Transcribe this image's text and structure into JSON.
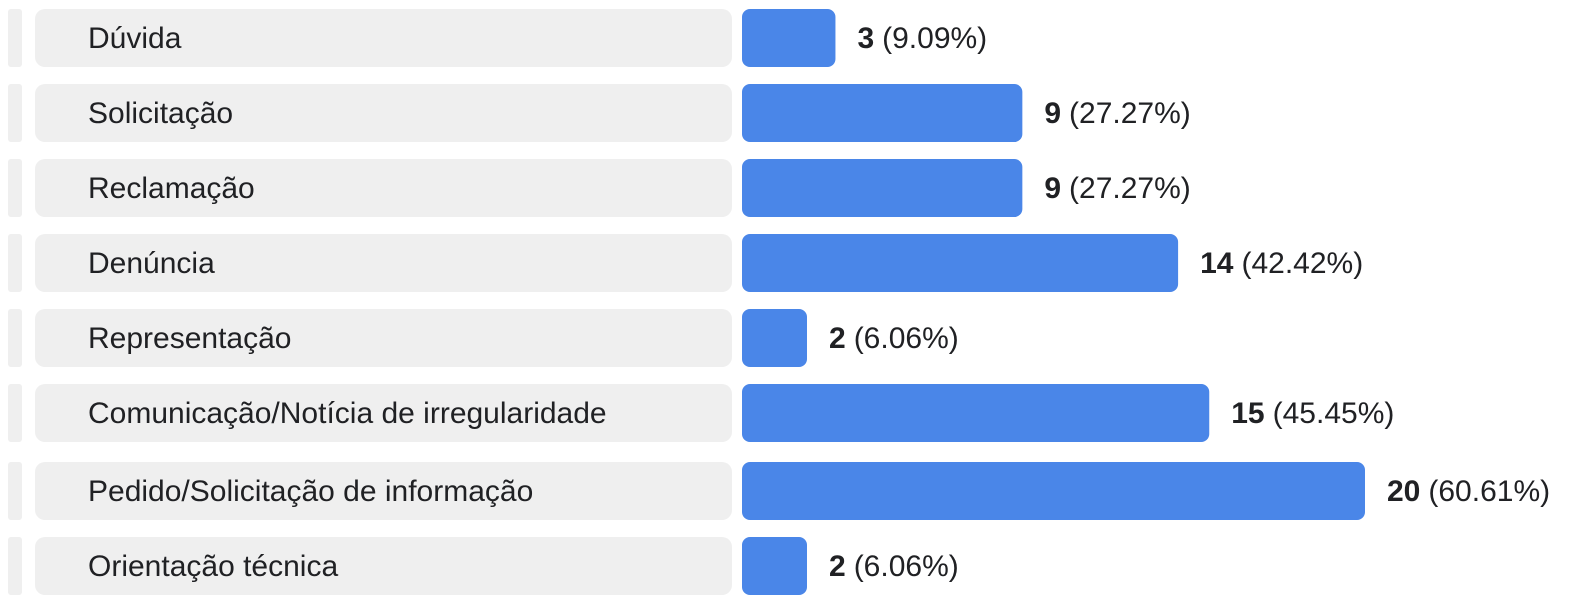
{
  "chart_data": {
    "type": "bar",
    "categories": [
      "Dúvida",
      "Solicitação",
      "Reclamação",
      "Denúncia",
      "Representação",
      "Comunicação/Notícia de irregularidade",
      "Pedido/Solicitação de informação",
      "Orientação técnica"
    ],
    "values": [
      3,
      9,
      9,
      14,
      2,
      15,
      20,
      2
    ],
    "percent_labels": [
      "(9.09%)",
      "(27.27%)",
      "(27.27%)",
      "(42.42%)",
      "(6.06%)",
      "(45.45%)",
      "(60.61%)",
      "(6.06%)"
    ],
    "color": "#4a86e8"
  }
}
